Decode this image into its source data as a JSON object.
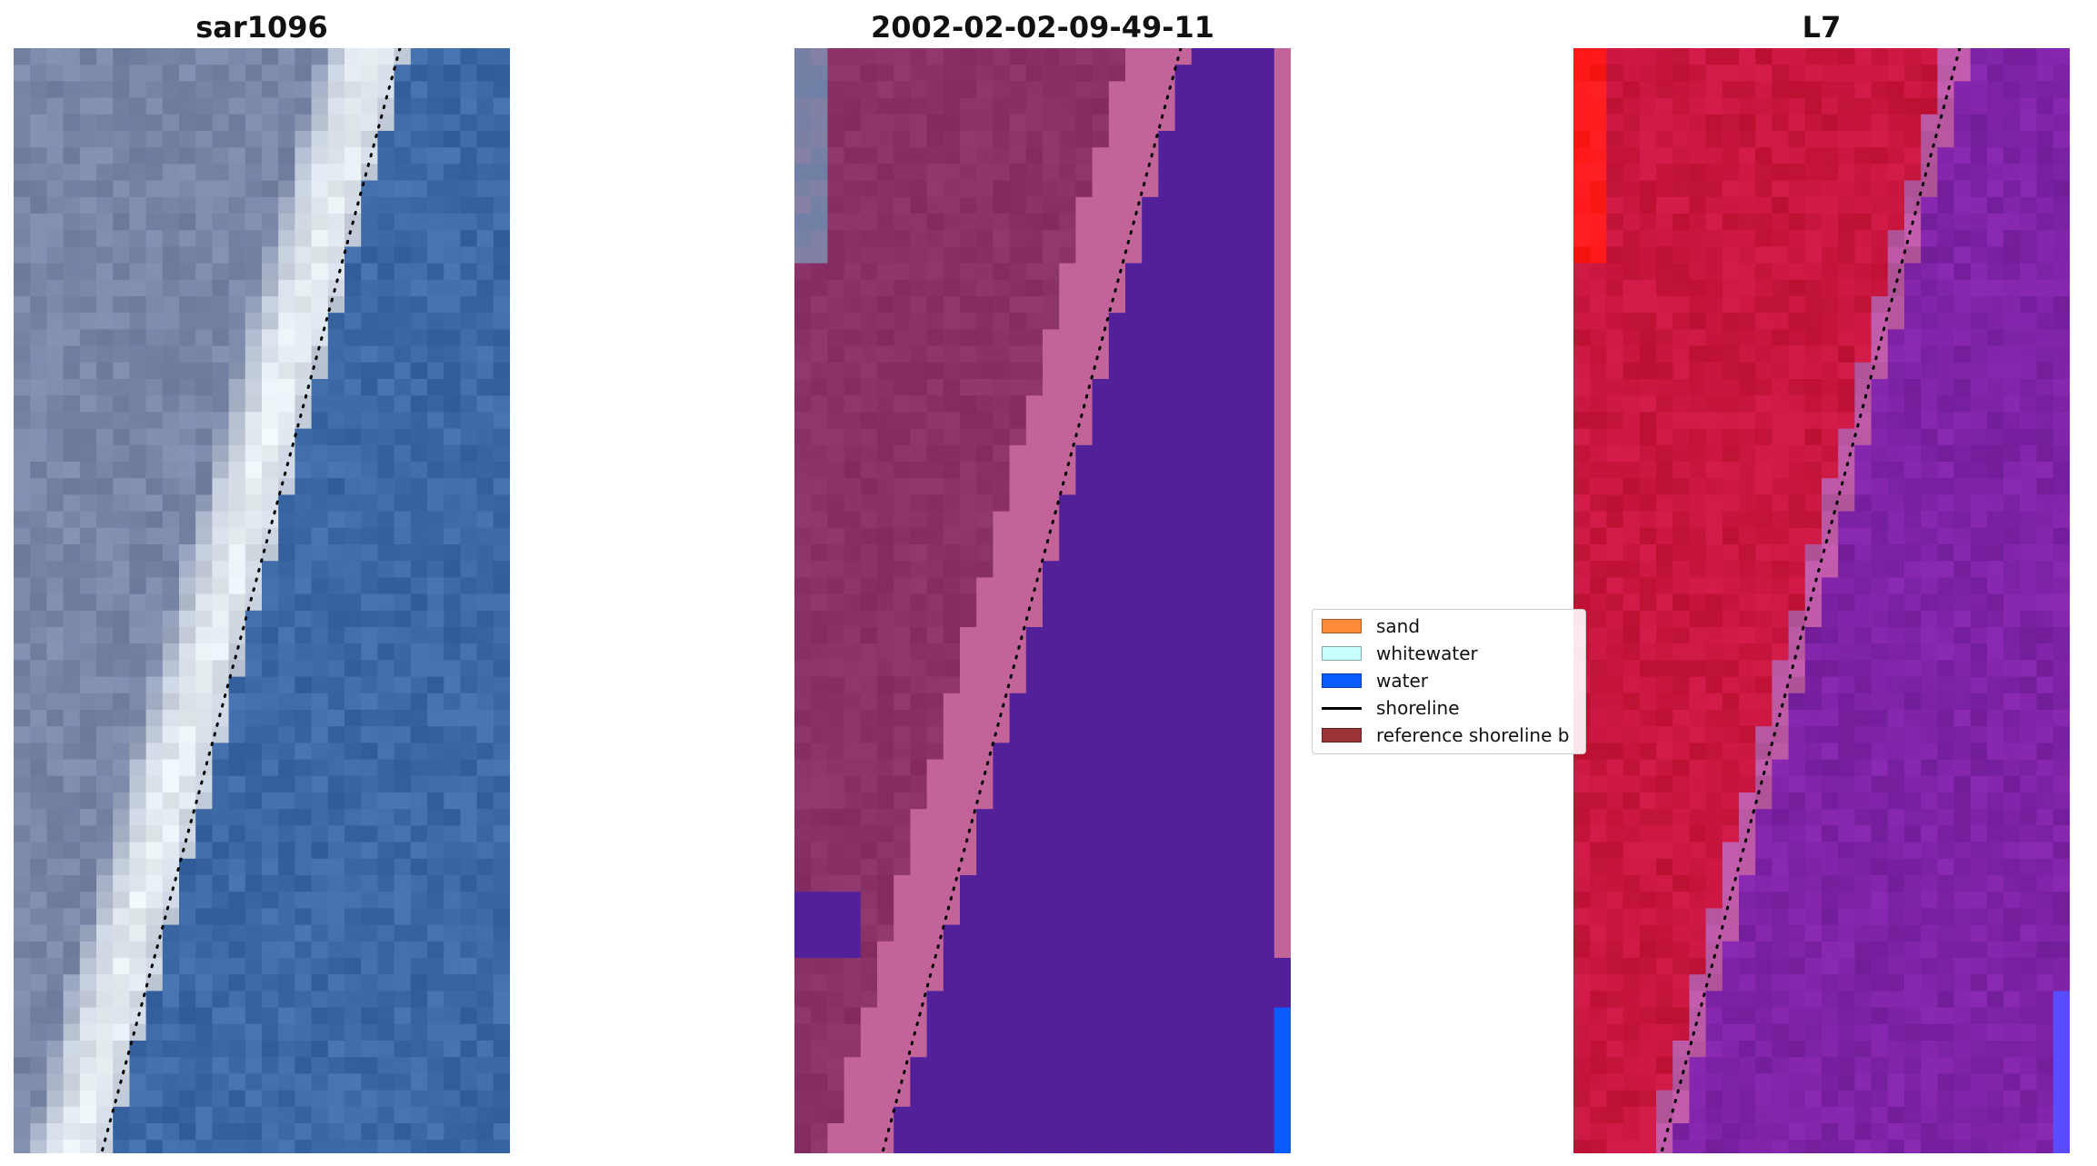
{
  "panels": [
    {
      "title": "sar1096"
    },
    {
      "title": "2002-02-02-09-49-11"
    },
    {
      "title": "L7"
    }
  ],
  "legend": {
    "items": [
      {
        "label": "sand",
        "color": "#ff8c3a",
        "kind": "patch"
      },
      {
        "label": "whitewater",
        "color": "#c9ffff",
        "kind": "patch"
      },
      {
        "label": "water",
        "color": "#0a5cff",
        "kind": "patch"
      },
      {
        "label": "shoreline",
        "color": "#000000",
        "kind": "line"
      },
      {
        "label": "reference shoreline b",
        "color": "#9b3438",
        "kind": "patch"
      }
    ]
  },
  "colors": {
    "rgb_water": "#3d6aa6",
    "rgb_land": "#7a86a8",
    "rgb_whitewater": "#e6eef2",
    "class_water": "#52219a",
    "class_land": "#8a3268",
    "class_band": "#c2639a",
    "class_edge_water": "#0a5cff",
    "falsecolor_land": "#c8163e",
    "falsecolor_water": "#7e23a6",
    "falsecolor_hot": "#ff1a1a",
    "falsecolor_edge_water": "#5a4cff"
  }
}
